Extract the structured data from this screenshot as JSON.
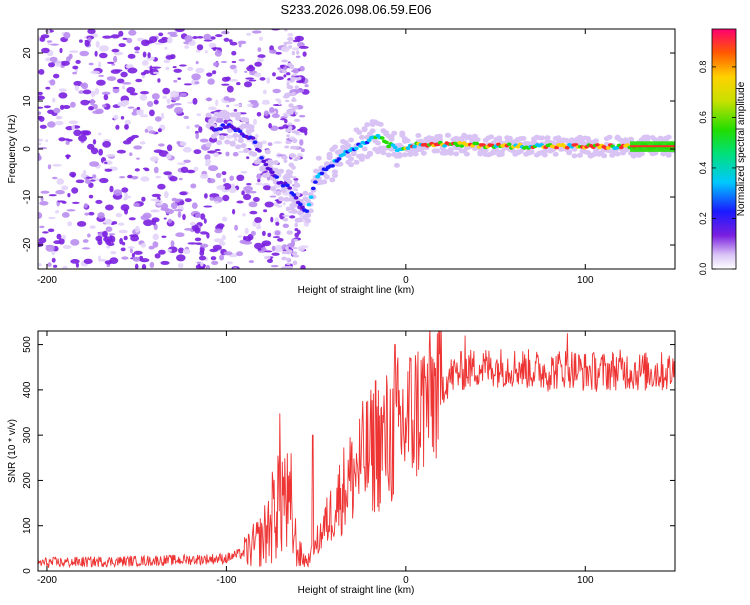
{
  "title": "S233.2026.098.06.59.E06",
  "chart_data": [
    {
      "type": "heatmap",
      "title": "S233.2026.098.06.59.E06",
      "xlabel": "Height of straight line (km)",
      "ylabel": "Frequency (Hz)",
      "xlim": [
        -205,
        150
      ],
      "ylim": [
        -25,
        25
      ],
      "xticks": [
        -200,
        -100,
        0,
        100
      ],
      "yticks": [
        -20,
        -10,
        0,
        10,
        20
      ],
      "ridge": {
        "x": [
          -105,
          -100,
          -95,
          -90,
          -85,
          -80,
          -75,
          -70,
          -65,
          -60,
          -55,
          -50,
          -45,
          -40,
          -35,
          -30,
          -25,
          -20,
          -15,
          -10,
          -5,
          0,
          10,
          20,
          40,
          60,
          80,
          100,
          120,
          150
        ],
        "y": [
          4,
          5,
          4,
          3,
          2,
          -2,
          -5,
          -7,
          -8,
          -11,
          -13,
          -6,
          -4,
          -3,
          -1,
          0,
          1,
          2,
          3,
          1,
          0,
          0.5,
          1,
          1,
          0.8,
          0.6,
          0.6,
          0.5,
          0.5,
          0.5
        ]
      },
      "colorbar": {
        "label": "Normalized spectral amplitude",
        "range": [
          0.0,
          0.95
        ],
        "ticks": [
          "0.0",
          "0.2",
          "0.4",
          "0.6",
          "0.8"
        ]
      }
    },
    {
      "type": "line",
      "xlabel": "Height of straight line (km)",
      "ylabel": "SNR (10 * v/v)",
      "xlim": [
        -205,
        150
      ],
      "ylim": [
        0,
        530
      ],
      "xticks": [
        -200,
        -100,
        0,
        100
      ],
      "yticks": [
        0,
        100,
        200,
        300,
        400,
        500
      ],
      "color": "#ee3333",
      "series": [
        {
          "name": "SNR",
          "x": [
            -205,
            -180,
            -150,
            -120,
            -100,
            -95,
            -90,
            -85,
            -80,
            -75,
            -70,
            -65,
            -60,
            -55,
            -50,
            -45,
            -40,
            -35,
            -30,
            -25,
            -20,
            -15,
            -10,
            -5,
            0,
            5,
            10,
            15,
            20,
            25,
            30,
            40,
            50,
            60,
            70,
            80,
            90,
            100,
            110,
            120,
            130,
            140,
            150
          ],
          "y": [
            18,
            20,
            22,
            25,
            28,
            35,
            40,
            55,
            70,
            110,
            190,
            130,
            40,
            20,
            60,
            100,
            140,
            180,
            210,
            240,
            260,
            280,
            290,
            310,
            330,
            350,
            370,
            390,
            410,
            430,
            440,
            450,
            450,
            450,
            445,
            440,
            450,
            440,
            440,
            445,
            440,
            440,
            440
          ]
        }
      ],
      "annotations": [
        {
          "x": -64,
          "y": 260
        },
        {
          "x": -52,
          "y": 300
        },
        {
          "x": -17,
          "y": 420
        },
        {
          "x": -6,
          "y": 500
        },
        {
          "x": 33,
          "y": 520
        },
        {
          "x": 90,
          "y": 525
        }
      ]
    }
  ]
}
